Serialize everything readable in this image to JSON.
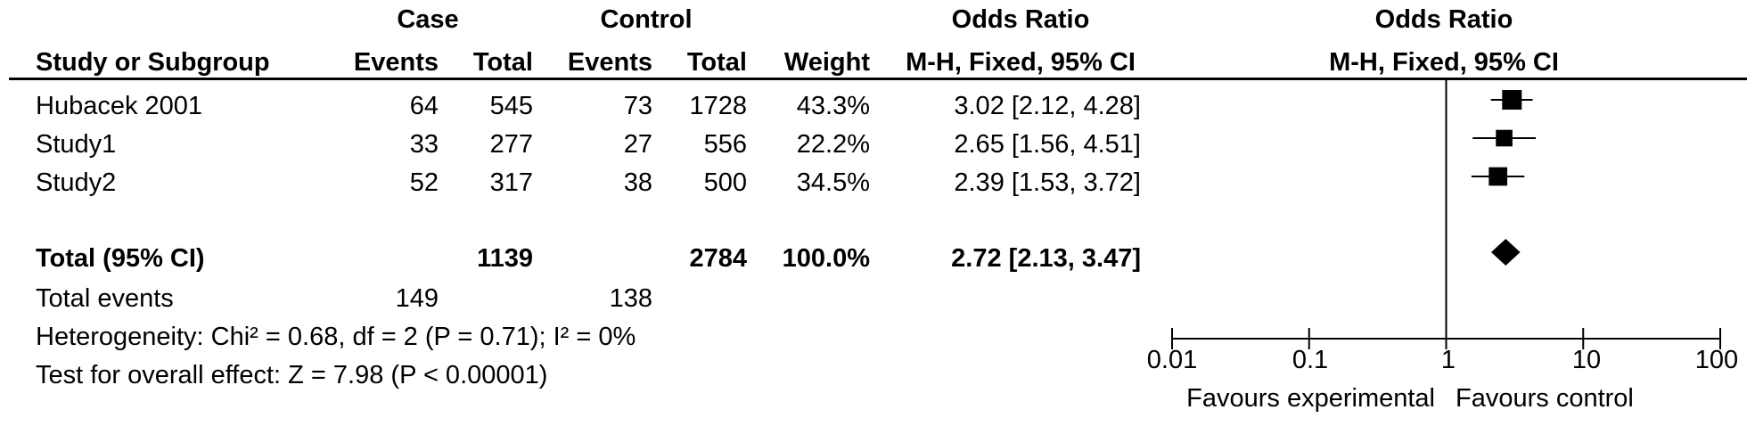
{
  "chart_data": {
    "type": "forest",
    "header": {
      "group_case": "Case",
      "group_control": "Control",
      "col_or_table": "Odds Ratio",
      "col_or_plot": "Odds Ratio",
      "study": "Study or Subgroup",
      "events": "Events",
      "total": "Total",
      "weight": "Weight",
      "method": "M-H, Fixed, 95% CI"
    },
    "studies": [
      {
        "name": "Hubacek 2001",
        "case_events": "64",
        "case_total": "545",
        "ctrl_events": "73",
        "ctrl_total": "1728",
        "weight": "43.3%",
        "ci_text": "3.02 [2.12, 4.28]",
        "or": 3.02,
        "lo": 2.12,
        "hi": 4.28
      },
      {
        "name": "Study1",
        "case_events": "33",
        "case_total": "277",
        "ctrl_events": "27",
        "ctrl_total": "556",
        "weight": "22.2%",
        "ci_text": "2.65 [1.56, 4.51]",
        "or": 2.65,
        "lo": 1.56,
        "hi": 4.51
      },
      {
        "name": "Study2",
        "case_events": "52",
        "case_total": "317",
        "ctrl_events": "38",
        "ctrl_total": "500",
        "weight": "34.5%",
        "ci_text": "2.39 [1.53, 3.72]",
        "or": 2.39,
        "lo": 1.53,
        "hi": 3.72
      }
    ],
    "total": {
      "label": "Total (95% CI)",
      "case_total": "1139",
      "ctrl_total": "2784",
      "weight": "100.0%",
      "ci_text": "2.72 [2.13, 3.47]",
      "or": 2.72,
      "lo": 2.13,
      "hi": 3.47
    },
    "total_events": {
      "label": "Total events",
      "case": "149",
      "control": "138"
    },
    "heterogeneity": "Heterogeneity: Chi² = 0.68, df = 2 (P = 0.71); I² = 0%",
    "overall_effect": "Test for overall effect: Z = 7.98 (P < 0.00001)",
    "x_axis": {
      "scale": "log",
      "ticks": [
        0.01,
        0.1,
        1,
        10,
        100
      ],
      "tick_labels": [
        "0.01",
        "0.1",
        "1",
        "10",
        "100"
      ],
      "xlim": [
        0.01,
        100
      ]
    },
    "favours_left": "Favours experimental",
    "favours_right": "Favours control"
  }
}
